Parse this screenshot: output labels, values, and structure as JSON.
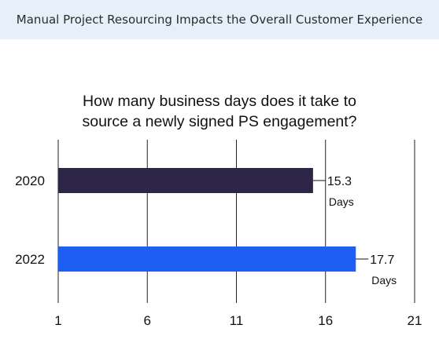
{
  "header": {
    "title": "Manual Project Resourcing Impacts the Overall Customer Experience"
  },
  "chart_data": {
    "type": "bar",
    "orientation": "horizontal",
    "title_lines": [
      "How many business days does it take to",
      "source a newly signed PS engagement?"
    ],
    "categories": [
      "2020",
      "2022"
    ],
    "values": [
      15.3,
      17.7
    ],
    "value_labels": [
      "15.3",
      "17.7"
    ],
    "unit_label": "Days",
    "bar_colors": [
      "#2e2647",
      "#1f5ef2"
    ],
    "xlim": [
      1,
      21
    ],
    "xticks": [
      1,
      6,
      11,
      16,
      21
    ],
    "grid": "vertical",
    "grid_color": "#222222"
  }
}
